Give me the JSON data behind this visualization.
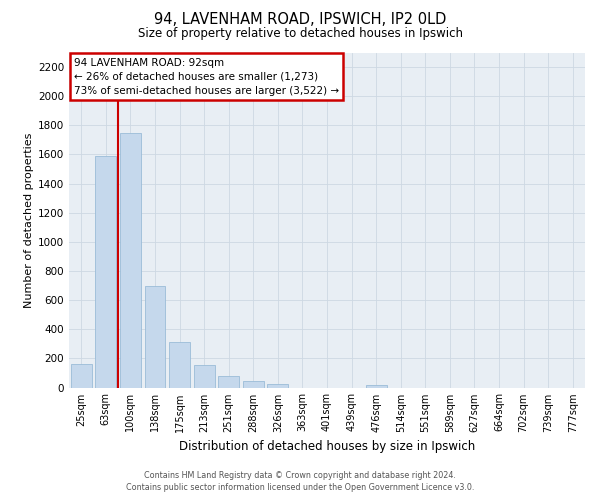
{
  "title1": "94, LAVENHAM ROAD, IPSWICH, IP2 0LD",
  "title2": "Size of property relative to detached houses in Ipswich",
  "xlabel": "Distribution of detached houses by size in Ipswich",
  "ylabel": "Number of detached properties",
  "bar_labels": [
    "25sqm",
    "63sqm",
    "100sqm",
    "138sqm",
    "175sqm",
    "213sqm",
    "251sqm",
    "288sqm",
    "326sqm",
    "363sqm",
    "401sqm",
    "439sqm",
    "476sqm",
    "514sqm",
    "551sqm",
    "589sqm",
    "627sqm",
    "664sqm",
    "702sqm",
    "739sqm",
    "777sqm"
  ],
  "bar_values": [
    160,
    1590,
    1750,
    700,
    310,
    155,
    80,
    48,
    25,
    0,
    0,
    0,
    18,
    0,
    0,
    0,
    0,
    0,
    0,
    0,
    0
  ],
  "bar_color": "#c5d8ec",
  "bar_edge_color": "#9bbcd8",
  "vline_color": "#cc0000",
  "vline_x_index": 1.5,
  "ylim": [
    0,
    2300
  ],
  "yticks": [
    0,
    200,
    400,
    600,
    800,
    1000,
    1200,
    1400,
    1600,
    1800,
    2000,
    2200
  ],
  "annotation_title": "94 LAVENHAM ROAD: 92sqm",
  "annotation_line1": "← 26% of detached houses are smaller (1,273)",
  "annotation_line2": "73% of semi-detached houses are larger (3,522) →",
  "footer1": "Contains HM Land Registry data © Crown copyright and database right 2024.",
  "footer2": "Contains public sector information licensed under the Open Government Licence v3.0.",
  "grid_color": "#cdd8e3",
  "background_color": "#e8eef4"
}
